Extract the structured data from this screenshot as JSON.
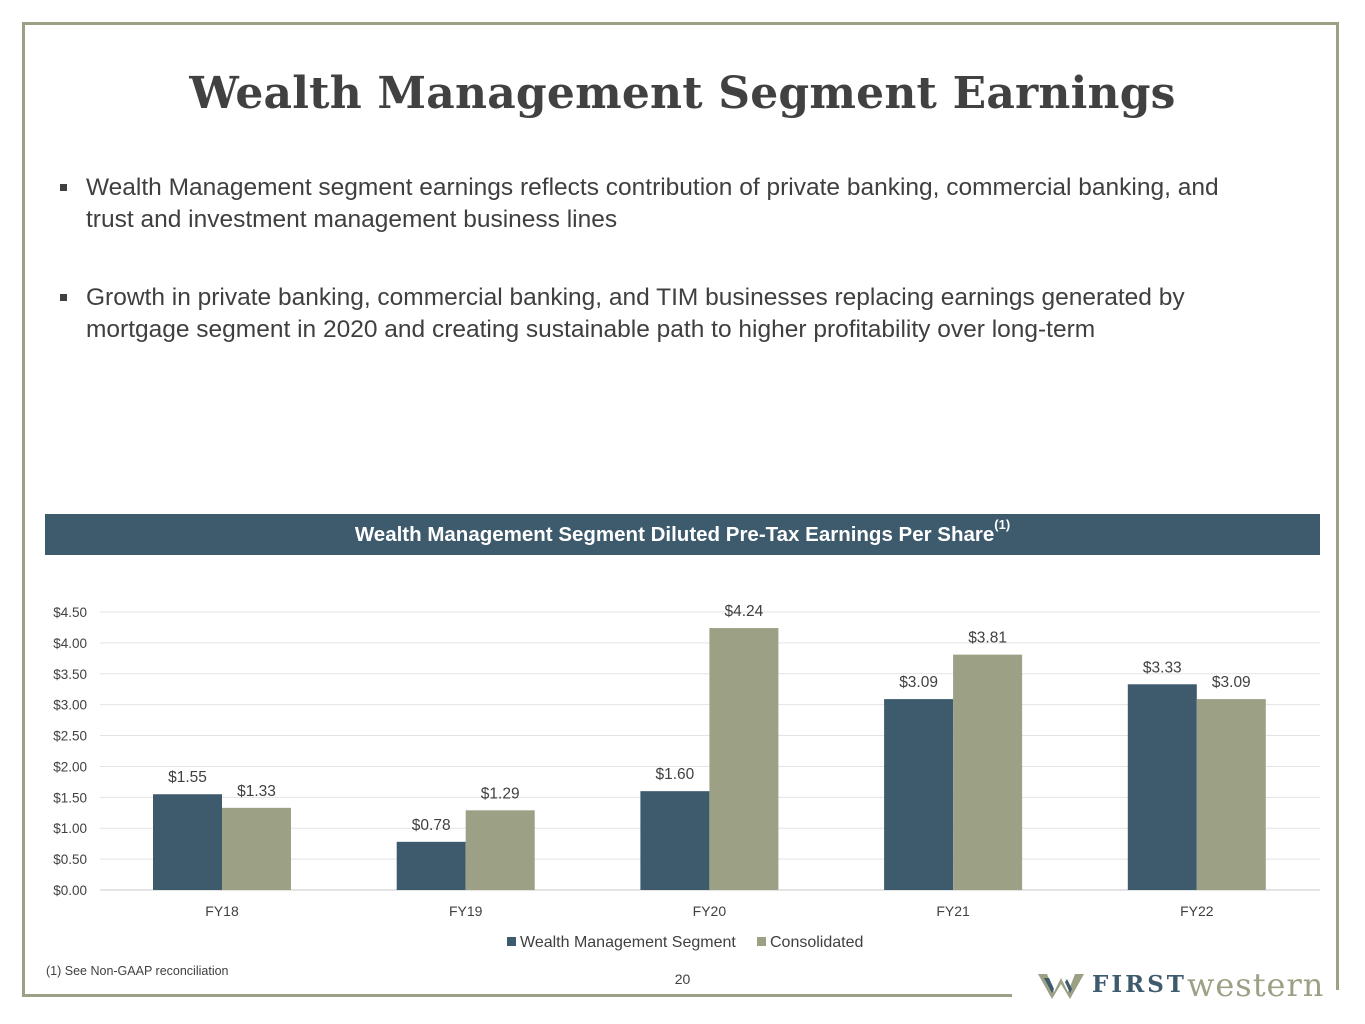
{
  "title": "Wealth Management Segment Earnings",
  "bullets": [
    "Wealth Management segment earnings reflects contribution of private banking, commercial banking, and trust and investment management business lines",
    "Growth in private banking, commercial banking, and TIM businesses replacing earnings generated by mortgage segment in 2020 and creating sustainable path to higher profitability over long-term"
  ],
  "chart_data": {
    "type": "bar",
    "title": "Wealth Management Segment Diluted Pre-Tax Earnings Per Share",
    "title_note": "(1)",
    "categories": [
      "FY18",
      "FY19",
      "FY20",
      "FY21",
      "FY22"
    ],
    "series": [
      {
        "name": "Wealth Management Segment",
        "values": [
          1.55,
          0.78,
          1.6,
          3.09,
          3.33
        ],
        "color": "#3e5b6e"
      },
      {
        "name": "Consolidated",
        "values": [
          1.33,
          1.29,
          4.24,
          3.81,
          3.09
        ],
        "color": "#9ca085"
      }
    ],
    "ylim": [
      0,
      4.5
    ],
    "yticks": [
      "$0.00",
      "$0.50",
      "$1.00",
      "$1.50",
      "$2.00",
      "$2.50",
      "$3.00",
      "$3.50",
      "$4.00",
      "$4.50"
    ],
    "grid": true,
    "legend": "bottom",
    "value_prefix": "$"
  },
  "footnote": "(1)  See Non-GAAP reconciliation",
  "page_number": "20",
  "logo": {
    "first": "FIRST",
    "western": "western"
  }
}
